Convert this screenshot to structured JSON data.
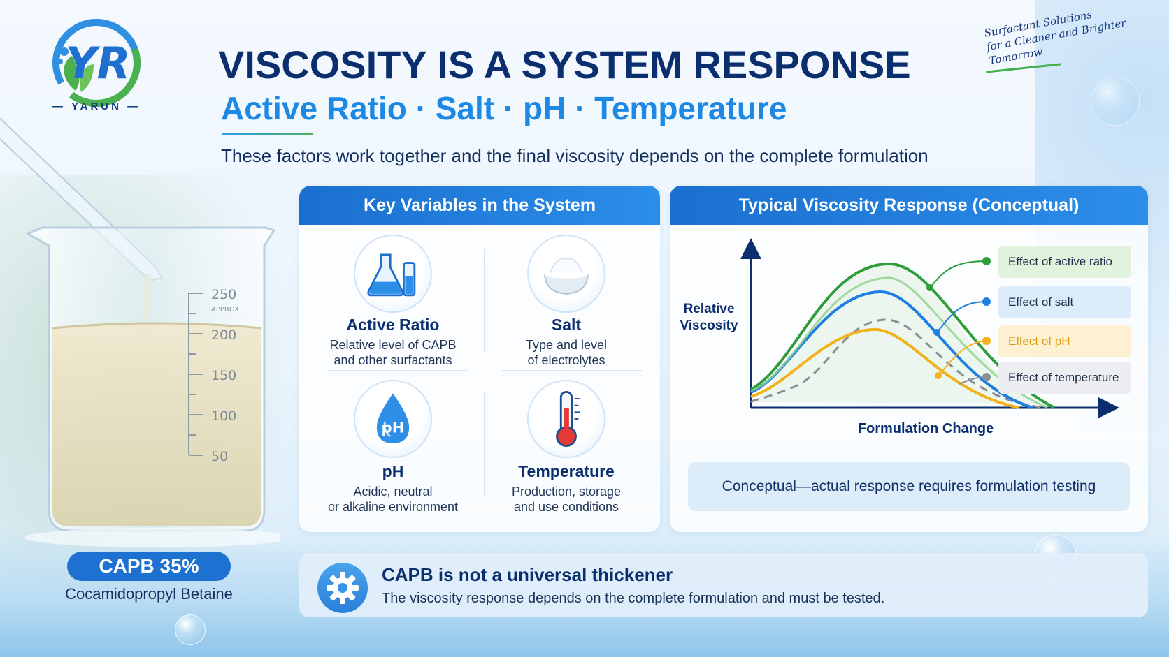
{
  "logo": {
    "mark": "YR",
    "word": "YARUN",
    "icon": "yarun-logo-icon"
  },
  "header": {
    "title": "VISCOSITY IS A SYSTEM RESPONSE",
    "subtitle": "Active Ratio · Salt · pH · Temperature",
    "description": "These factors work together and the final viscosity depends on the complete formulation"
  },
  "tagline": {
    "line1": "Surfactant Solutions",
    "line2": "for a Cleaner and Brighter Tomorrow"
  },
  "beaker": {
    "marks": [
      "250",
      "200",
      "150",
      "100",
      "50"
    ],
    "approx": "APPROX",
    "icon": "beaker-pipette-icon"
  },
  "product": {
    "label": "CAPB 35%",
    "name": "Cocamidopropyl Betaine"
  },
  "variables_panel": {
    "title": "Key Variables in the System",
    "items": [
      {
        "title": "Active Ratio",
        "desc1": "Relative level of CAPB",
        "desc2": "and other surfactants",
        "icon": "flask-icon"
      },
      {
        "title": "Salt",
        "desc1": "Type and level",
        "desc2": "of electrolytes",
        "icon": "salt-bowl-icon"
      },
      {
        "title": "pH",
        "desc1": "Acidic, neutral",
        "desc2": "or alkaline environment",
        "icon": "ph-drop-icon",
        "icon_text": "pH"
      },
      {
        "title": "Temperature",
        "desc1": "Production, storage",
        "desc2": "and use conditions",
        "icon": "thermometer-icon"
      }
    ]
  },
  "response_panel": {
    "title": "Typical Viscosity Response (Conceptual)",
    "ylabel_line1": "Relative",
    "ylabel_line2": "Viscosity",
    "xlabel": "Formulation Change",
    "legend": [
      {
        "label": "Effect of active ratio",
        "color": "#2f9e3a",
        "bg": "#e2f3dd"
      },
      {
        "label": "Effect of salt",
        "color": "#1e7fe0",
        "bg": "#dcecfa"
      },
      {
        "label": "Effect of pH",
        "color": "#f2b21c",
        "bg": "#fdf1d2"
      },
      {
        "label": "Effect of temperature",
        "color": "#8a8f96",
        "bg": "#eceef1"
      }
    ],
    "note": "Conceptual—actual response requires formulation testing"
  },
  "banner": {
    "title": "CAPB is not a universal thickener",
    "desc": "The viscosity response depends on the complete formulation and must be tested.",
    "icon": "gear-icon"
  }
}
